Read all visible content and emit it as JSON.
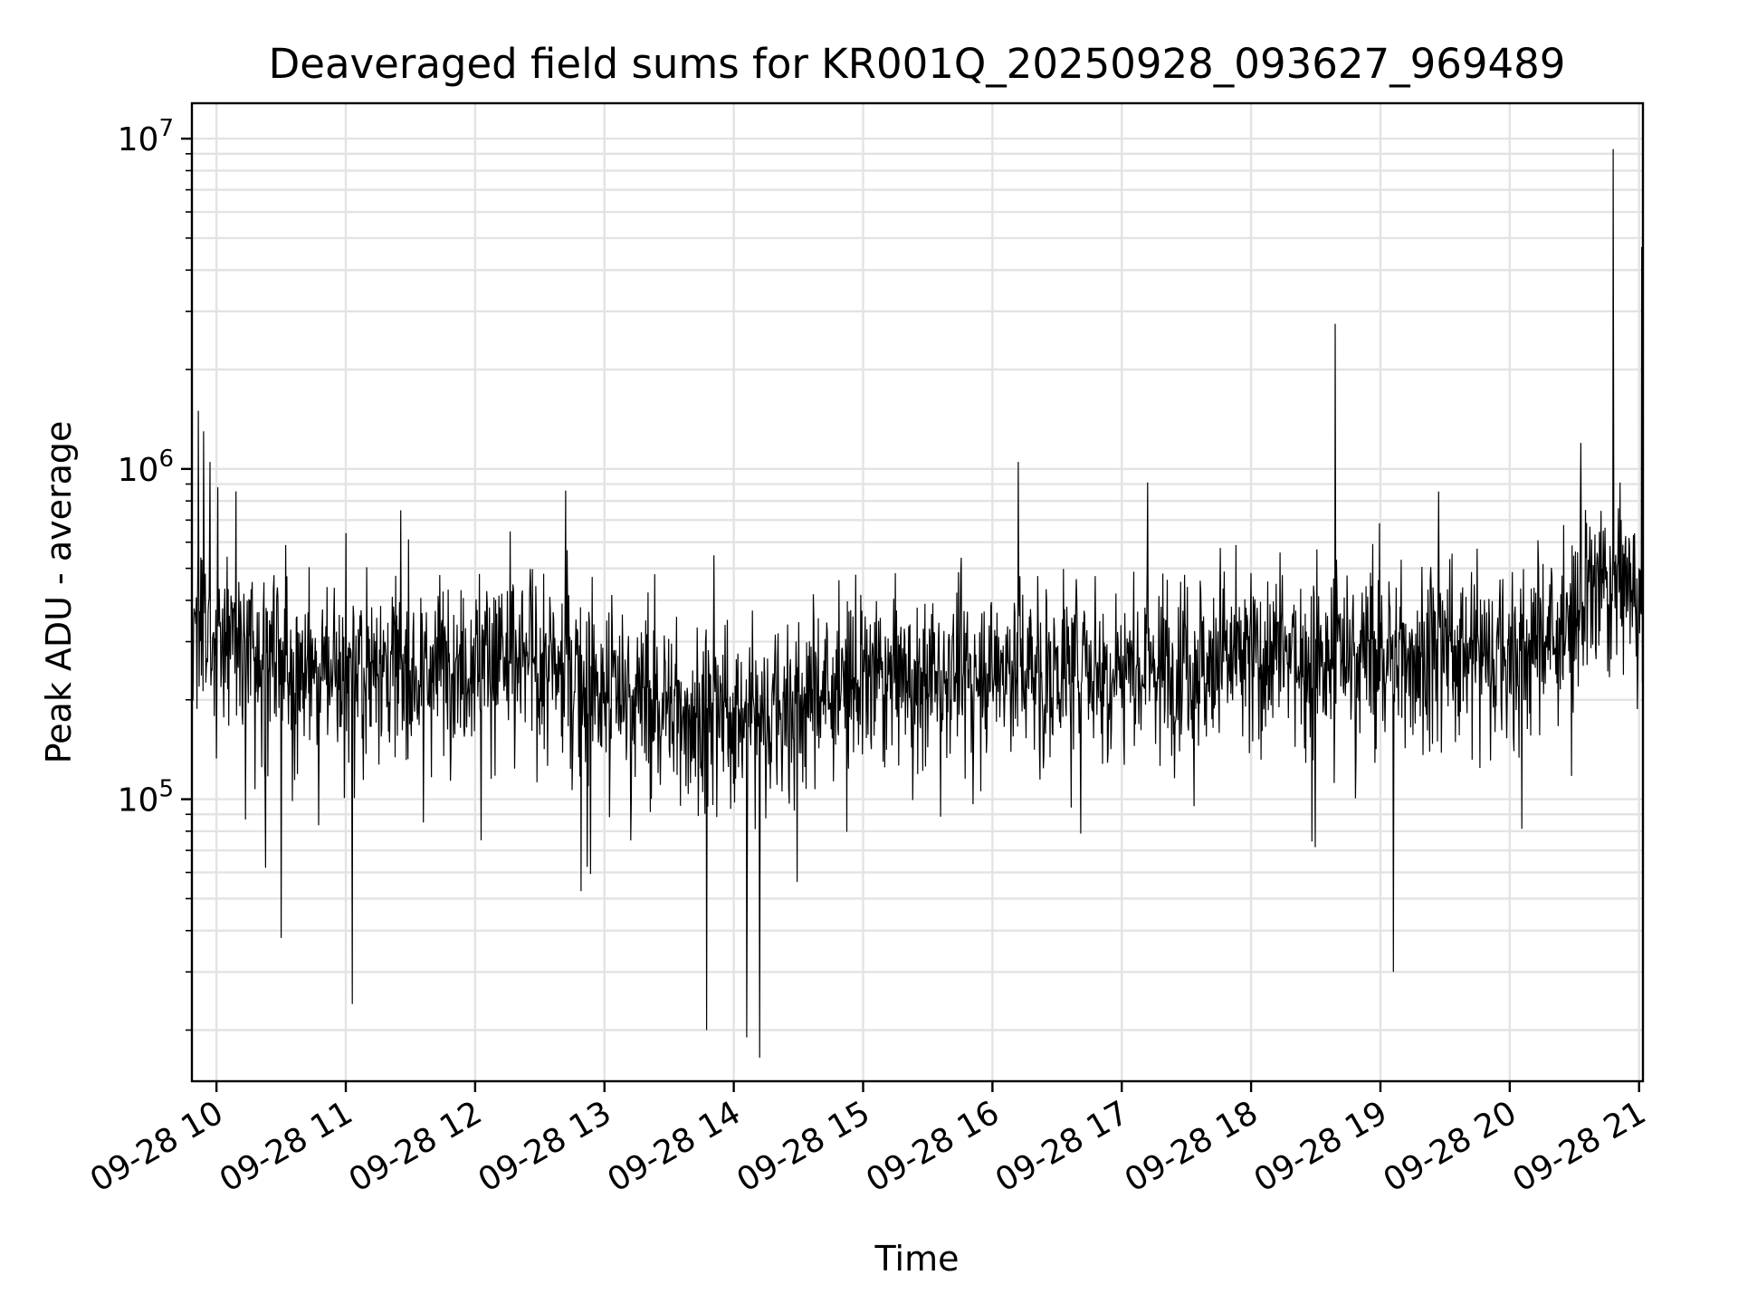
{
  "chart_data": {
    "type": "line",
    "title": "Deaveraged field sums for KR001Q_20250928_093627_969489",
    "xlabel": "Time",
    "ylabel": "Peak ADU - average",
    "yscale": "log",
    "ylim": [
      14000,
      12800000
    ],
    "xlim_hours": [
      9.81,
      21.03
    ],
    "grid": true,
    "colors": {
      "series": "#000000",
      "grid": "#e3e3e3"
    },
    "x_ticks": [
      {
        "hour": 10,
        "label": "09-28 10"
      },
      {
        "hour": 11,
        "label": "09-28 11"
      },
      {
        "hour": 12,
        "label": "09-28 12"
      },
      {
        "hour": 13,
        "label": "09-28 13"
      },
      {
        "hour": 14,
        "label": "09-28 14"
      },
      {
        "hour": 15,
        "label": "09-28 15"
      },
      {
        "hour": 16,
        "label": "09-28 16"
      },
      {
        "hour": 17,
        "label": "09-28 17"
      },
      {
        "hour": 18,
        "label": "09-28 18"
      },
      {
        "hour": 19,
        "label": "09-28 19"
      },
      {
        "hour": 20,
        "label": "09-28 20"
      },
      {
        "hour": 21,
        "label": "09-28 21"
      }
    ],
    "y_ticks": [
      {
        "value": 100000,
        "base": "10",
        "exp": "5"
      },
      {
        "value": 1000000,
        "base": "10",
        "exp": "6"
      },
      {
        "value": 10000000,
        "base": "10",
        "exp": "7"
      }
    ],
    "series": [
      {
        "name": "Peak ADU - average",
        "start_hour": 9.81,
        "end_hour": 21.03,
        "baseline_anchors": [
          [
            9.81,
            380000
          ],
          [
            10.0,
            320000
          ],
          [
            10.5,
            260000
          ],
          [
            11.0,
            240000
          ],
          [
            12.0,
            270000
          ],
          [
            12.5,
            260000
          ],
          [
            13.0,
            220000
          ],
          [
            13.5,
            190000
          ],
          [
            14.0,
            175000
          ],
          [
            14.5,
            200000
          ],
          [
            15.0,
            230000
          ],
          [
            16.0,
            250000
          ],
          [
            17.0,
            260000
          ],
          [
            18.0,
            270000
          ],
          [
            19.0,
            280000
          ],
          [
            20.0,
            280000
          ],
          [
            20.5,
            330000
          ],
          [
            20.6,
            430000
          ],
          [
            21.03,
            450000
          ]
        ],
        "notable_points": [
          {
            "hour": 9.86,
            "value": 1500000
          },
          {
            "hour": 9.9,
            "value": 1300000
          },
          {
            "hour": 9.95,
            "value": 1050000
          },
          {
            "hour": 10.01,
            "value": 880000
          },
          {
            "hour": 10.5,
            "value": 38000
          },
          {
            "hour": 11.05,
            "value": 24000
          },
          {
            "hour": 11.6,
            "value": 85000
          },
          {
            "hour": 12.7,
            "value": 860000
          },
          {
            "hour": 13.79,
            "value": 20000
          },
          {
            "hour": 14.1,
            "value": 19000
          },
          {
            "hour": 14.2,
            "value": 16500
          },
          {
            "hour": 16.2,
            "value": 1050000
          },
          {
            "hour": 17.2,
            "value": 910000
          },
          {
            "hour": 18.65,
            "value": 2750000
          },
          {
            "hour": 19.1,
            "value": 30000
          },
          {
            "hour": 20.55,
            "value": 1200000
          },
          {
            "hour": 20.8,
            "value": 9300000
          },
          {
            "hour": 21.02,
            "value": 4700000
          }
        ]
      }
    ]
  }
}
